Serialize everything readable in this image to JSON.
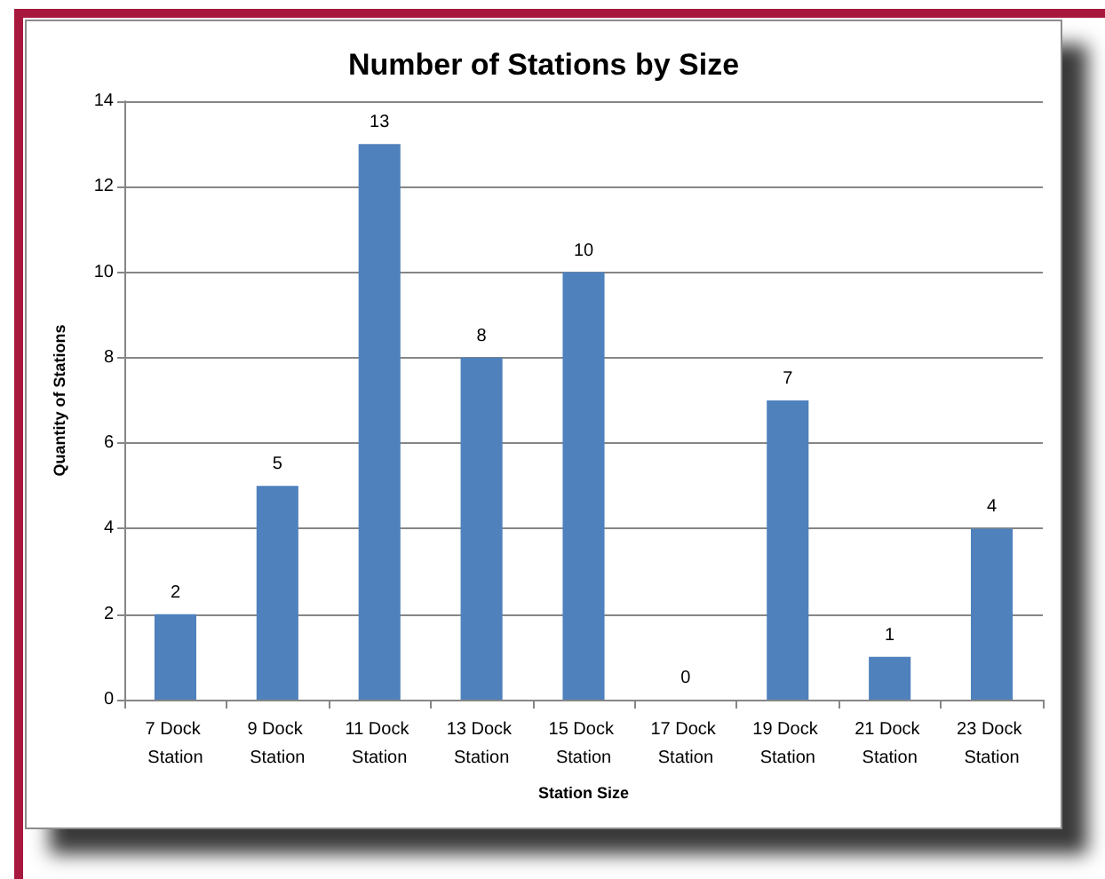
{
  "chart_data": {
    "type": "bar",
    "title": "Number of Stations by Size",
    "xlabel": "Station Size",
    "ylabel": "Quantity of Stations",
    "categories": [
      "7 Dock Station",
      "9 Dock Station",
      "11 Dock Station",
      "13 Dock Station",
      "15 Dock Station",
      "17 Dock Station",
      "19 Dock Station",
      "21 Dock Station",
      "23 Dock Station"
    ],
    "values": [
      2,
      5,
      13,
      8,
      10,
      0,
      7,
      1,
      4
    ],
    "color": "#4f81bd",
    "ylim": [
      0,
      14
    ],
    "yticks": [
      0,
      2,
      4,
      6,
      8,
      10,
      12,
      14
    ],
    "grid": "y",
    "data_labels": true
  }
}
